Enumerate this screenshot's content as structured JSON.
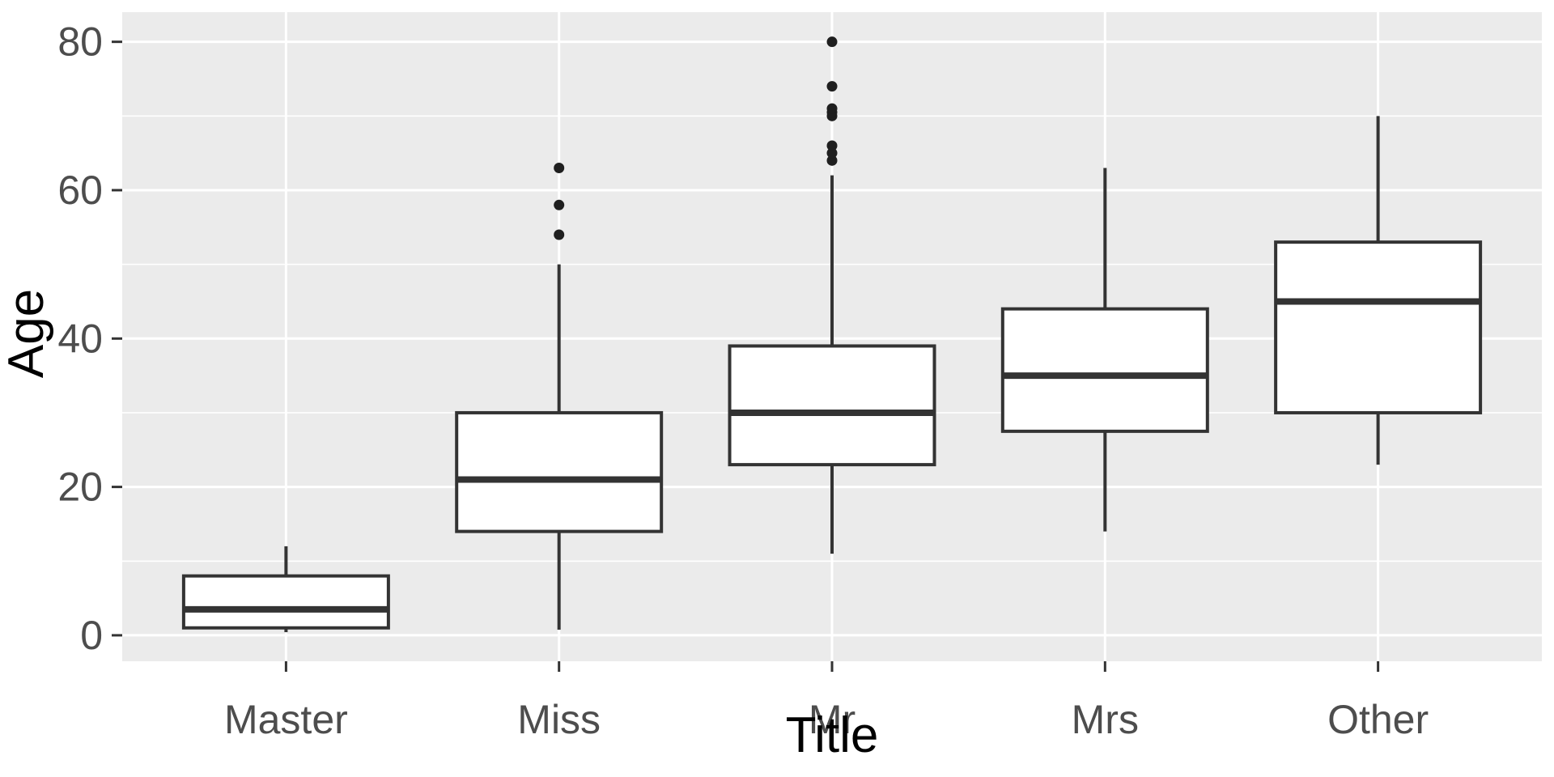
{
  "chart_data": {
    "type": "boxplot",
    "title": "",
    "xlabel": "Title",
    "ylabel": "Age",
    "categories": [
      "Master",
      "Miss",
      "Mr",
      "Mrs",
      "Other"
    ],
    "y_ticks": [
      0,
      20,
      40,
      60,
      80
    ],
    "y_minor_ticks": [
      10,
      30,
      50,
      70
    ],
    "ylim": [
      -3.5,
      84
    ],
    "x_domain_pad": 0.6,
    "box_width_units": 0.75,
    "grid": true,
    "legend": "none",
    "boxes": [
      {
        "category": "Master",
        "whisker_low": 0.42,
        "q1": 1,
        "median": 3.5,
        "q3": 8,
        "whisker_high": 12,
        "outliers": []
      },
      {
        "category": "Miss",
        "whisker_low": 0.75,
        "q1": 14,
        "median": 21,
        "q3": 30,
        "whisker_high": 50,
        "outliers": [
          54,
          58,
          63
        ]
      },
      {
        "category": "Mr",
        "whisker_low": 11,
        "q1": 23,
        "median": 30,
        "q3": 39,
        "whisker_high": 62,
        "outliers": [
          64,
          65,
          66,
          70,
          70.5,
          71,
          74,
          80
        ]
      },
      {
        "category": "Mrs",
        "whisker_low": 14,
        "q1": 27.5,
        "median": 35,
        "q3": 44,
        "whisker_high": 63,
        "outliers": []
      },
      {
        "category": "Other",
        "whisker_low": 23,
        "q1": 30,
        "median": 45,
        "q3": 53,
        "whisker_high": 70,
        "outliers": []
      }
    ],
    "colors": {
      "figure_bg": "#FFFFFF",
      "panel_bg": "#EBEBEB",
      "grid": "#FFFFFF",
      "box_stroke": "#333333",
      "box_fill": "#FFFFFF",
      "median": "#333333",
      "whisker": "#333333",
      "outlier": "#1F1F1F",
      "tick_mark": "#333333",
      "tick_label": "#4D4D4D",
      "axis_title": "#000000"
    }
  }
}
